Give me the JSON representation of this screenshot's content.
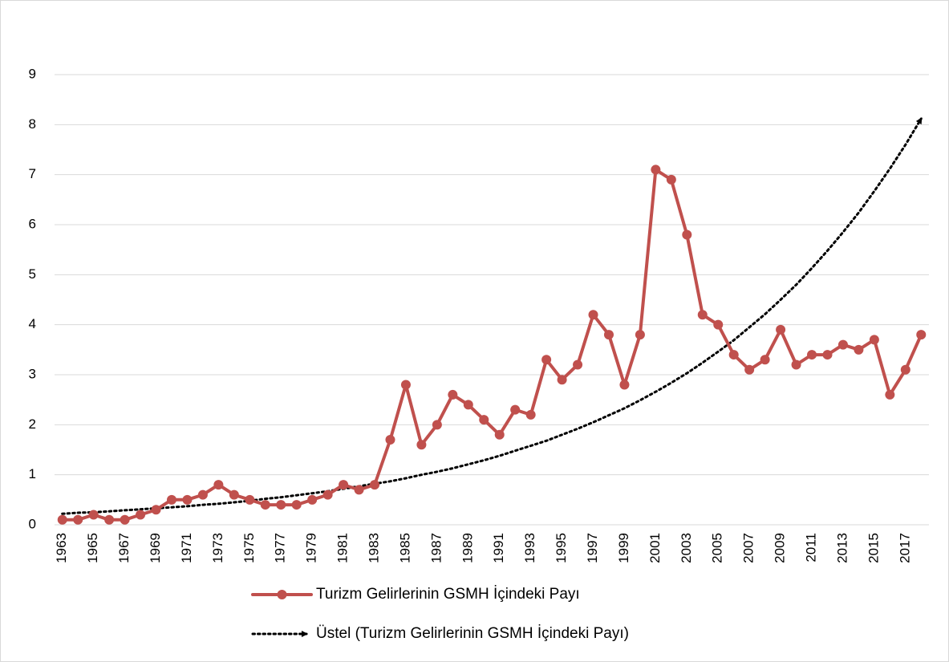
{
  "chart_data": {
    "type": "line",
    "categories": [
      "1963",
      null,
      "1965",
      null,
      "1967",
      null,
      "1969",
      null,
      "1971",
      null,
      "1973",
      null,
      "1975",
      null,
      "1977",
      null,
      "1979",
      null,
      "1981",
      null,
      "1983",
      null,
      "1985",
      null,
      "1987",
      null,
      "1989",
      null,
      "1991",
      null,
      "1993",
      null,
      "1995",
      null,
      "1997",
      null,
      "1999",
      null,
      "2001",
      null,
      "2003",
      null,
      "2005",
      null,
      "2007",
      null,
      "2009",
      null,
      "2011",
      null,
      "2013",
      null,
      "2015",
      null,
      "2017",
      null
    ],
    "series": [
      {
        "name": "Turizm Gelirlerinin GSMH İçindeki Payı",
        "color": "#c0504d",
        "style": "solid",
        "markers": true,
        "values": [
          0.1,
          0.1,
          0.2,
          0.1,
          0.1,
          0.2,
          0.3,
          0.5,
          0.5,
          0.6,
          0.8,
          0.6,
          0.5,
          0.4,
          0.4,
          0.4,
          0.5,
          0.6,
          0.8,
          0.7,
          0.8,
          1.7,
          2.8,
          1.6,
          2.0,
          2.6,
          2.4,
          2.1,
          1.8,
          2.3,
          2.2,
          3.3,
          2.9,
          3.2,
          4.2,
          3.8,
          2.8,
          3.8,
          7.1,
          6.9,
          5.8,
          4.2,
          4.0,
          3.4,
          3.1,
          3.3,
          3.9,
          3.2,
          3.4,
          3.4,
          3.6,
          3.5,
          3.7,
          2.6,
          3.1,
          3.8
        ]
      },
      {
        "name": "Üstel (Turizm Gelirlerinin GSMH İçindeki Payı)",
        "color": "#000000",
        "style": "dotted",
        "markers": false,
        "values": [
          0.22,
          0.24,
          0.25,
          0.27,
          0.29,
          0.31,
          0.33,
          0.35,
          0.37,
          0.4,
          0.42,
          0.45,
          0.48,
          0.52,
          0.55,
          0.59,
          0.63,
          0.67,
          0.72,
          0.77,
          0.82,
          0.87,
          0.93,
          1.0,
          1.06,
          1.13,
          1.21,
          1.29,
          1.38,
          1.48,
          1.58,
          1.68,
          1.8,
          1.92,
          2.05,
          2.19,
          2.33,
          2.49,
          2.66,
          2.84,
          3.03,
          3.24,
          3.46,
          3.69,
          3.95,
          4.21,
          4.5,
          4.8,
          5.13,
          5.48,
          5.85,
          6.24,
          6.67,
          7.12,
          7.6,
          8.12
        ]
      }
    ],
    "ylim": [
      0,
      9
    ],
    "yticks": [
      0,
      1,
      2,
      3,
      4,
      5,
      6,
      7,
      8,
      9
    ],
    "grid": true
  }
}
